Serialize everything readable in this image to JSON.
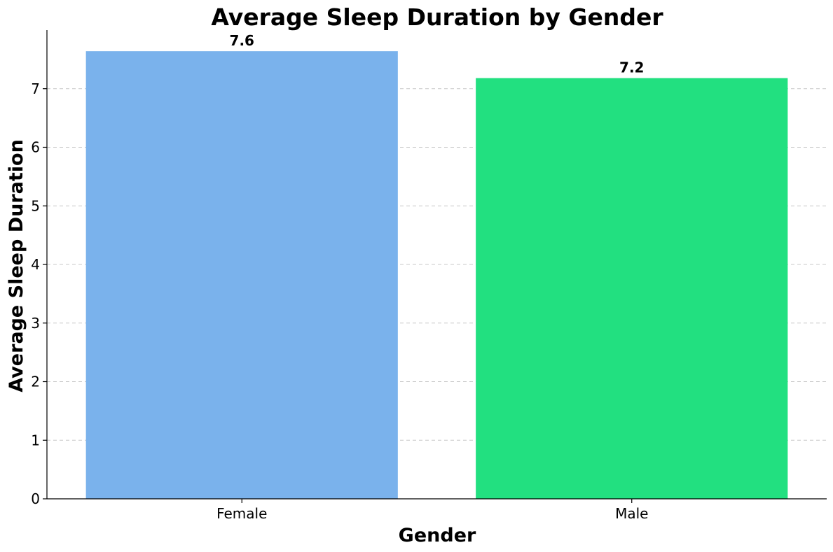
{
  "chart_data": {
    "type": "bar",
    "title": "Average Sleep Duration by Gender",
    "xlabel": "Gender",
    "ylabel": "Average Sleep Duration",
    "categories": [
      "Female",
      "Male"
    ],
    "values": [
      7.64,
      7.18
    ],
    "value_labels": [
      "7.6",
      "7.2"
    ],
    "colors": [
      "#7ab2ec",
      "#22e080"
    ],
    "ylim": [
      0,
      8
    ],
    "yticks": [
      0,
      1,
      2,
      3,
      4,
      5,
      6,
      7
    ],
    "grid": "y-dashed",
    "legend": "none"
  }
}
